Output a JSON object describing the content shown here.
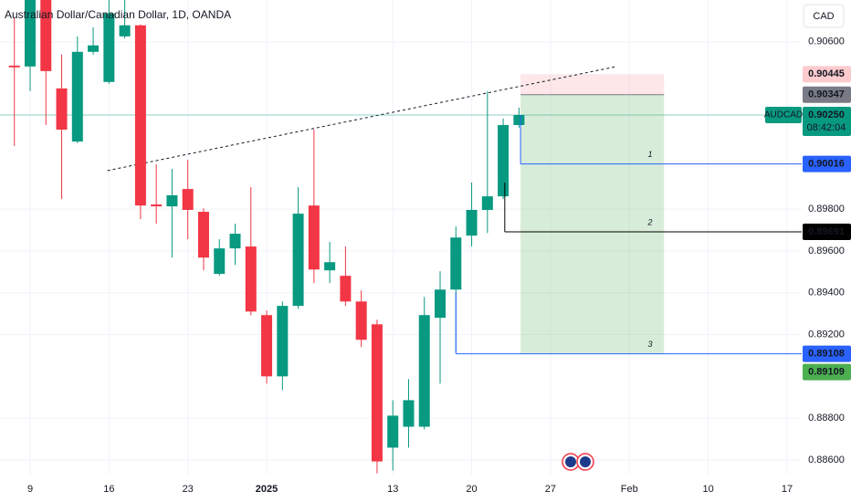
{
  "chart_data": {
    "type": "candlestick",
    "title": "Australian Dollar/Canadian Dollar, 1D, OANDA",
    "currency": "CAD",
    "categories": [
      null,
      "9",
      null,
      null,
      null,
      null,
      "16",
      null,
      null,
      null,
      null,
      "23",
      null,
      null,
      null,
      null,
      "2025",
      null,
      null,
      null,
      null,
      null,
      null,
      null,
      "13",
      null,
      null,
      null,
      null,
      "20",
      null,
      null,
      null,
      null,
      "27",
      null,
      null,
      null,
      null,
      "Feb",
      null,
      null,
      null,
      null,
      "10",
      null,
      null,
      null,
      null,
      "17"
    ],
    "open": [
      0.90486,
      0.90482,
      0.90823,
      0.90377,
      0.90123,
      0.90552,
      0.90408,
      0.90626,
      0.90679,
      0.89822,
      0.89813,
      0.89896,
      0.89787,
      0.8949,
      0.89612,
      0.89621,
      0.89293,
      0.89,
      0.89337,
      0.89817,
      0.89507,
      0.89481,
      0.89358,
      0.89249,
      0.88659,
      0.88759,
      0.88759,
      0.8928,
      0.89415,
      0.89673,
      0.89796,
      0.89861,
      0.90202,
      null,
      null,
      null,
      null,
      null,
      null,
      null,
      null,
      null,
      null,
      null,
      null,
      null,
      null,
      null,
      null,
      null
    ],
    "high": [
      0.90714,
      0.90889,
      0.90889,
      0.90539,
      0.90626,
      0.9067,
      0.90801,
      0.90801,
      0.90683,
      0.90014,
      0.89992,
      0.90036,
      0.89804,
      0.89656,
      0.8973,
      0.89905,
      0.89315,
      0.89358,
      0.89905,
      0.9018,
      0.89643,
      0.89621,
      0.89411,
      0.89271,
      0.88886,
      0.88987,
      0.8938,
      0.89503,
      0.89717,
      0.89927,
      0.90364,
      0.90233,
      0.90285,
      null,
      null,
      null,
      null,
      null,
      null,
      null,
      null,
      null,
      null,
      null,
      null,
      null,
      null,
      null,
      null,
      null
    ],
    "low": [
      0.90102,
      0.90364,
      0.90202,
      0.89848,
      0.90115,
      0.90539,
      0.90399,
      0.90617,
      0.89752,
      0.8973,
      0.89568,
      0.89656,
      0.89507,
      0.89481,
      0.89533,
      0.89293,
      0.88965,
      0.88934,
      0.89323,
      0.89446,
      0.89446,
      0.89337,
      0.8914,
      0.88536,
      0.8855,
      0.88659,
      0.88746,
      0.88965,
      0.89118,
      0.89621,
      0.89686,
      0.89848,
      0.90189,
      null,
      null,
      null,
      null,
      null,
      null,
      null,
      null,
      null,
      null,
      null,
      null,
      null,
      null,
      null,
      null,
      null
    ],
    "close": [
      0.90478,
      0.90823,
      0.9046,
      0.9018,
      0.90552,
      0.90583,
      0.90736,
      0.90679,
      0.89817,
      0.89813,
      0.89866,
      0.89796,
      0.89568,
      0.89612,
      0.89682,
      0.8931,
      0.89,
      0.89337,
      0.89778,
      0.89511,
      0.89546,
      0.89358,
      0.89175,
      0.88593,
      0.88812,
      0.88886,
      0.89293,
      0.89415,
      0.89664,
      0.89796,
      0.89861,
      0.90202,
      0.9025,
      null,
      null,
      null,
      null,
      null,
      null,
      null,
      null,
      null,
      null,
      null,
      null,
      null,
      null,
      null,
      null,
      null
    ],
    "up_color": "#089981",
    "down_color": "#f23645",
    "ylim": [
      0.8853,
      0.908
    ],
    "yticks": [
      {
        "value": 0.906,
        "label": "0.90600"
      },
      {
        "value": 0.898,
        "label": "0.89800"
      },
      {
        "value": 0.896,
        "label": "0.89600"
      },
      {
        "value": 0.894,
        "label": "0.89400"
      },
      {
        "value": 0.892,
        "label": "0.89200"
      },
      {
        "value": 0.888,
        "label": "0.88800"
      },
      {
        "value": 0.886,
        "label": "0.88600"
      }
    ],
    "grid": true,
    "trendline": {
      "x": [
        5.9,
        38.2
      ],
      "y": [
        0.89984,
        0.90482
      ]
    },
    "position": {
      "x": [
        32.1,
        41.2
      ],
      "stop": 0.90445,
      "entry": 0.90347,
      "target": 0.89109,
      "stop_color": "#fccbcd",
      "entry_color": "#787b86",
      "target_color": "#4caf50"
    },
    "last": {
      "symbol": "AUDCAD",
      "price": {
        "value": 0.9025,
        "label": "0.90250"
      },
      "countdown": "08:42:04",
      "color": "#089981"
    },
    "levels": [
      {
        "name": "1",
        "value": 0.90016,
        "color": "#2962ff",
        "anchor_x": 32.1,
        "anchor_y": 0.9025
      },
      {
        "name": "2",
        "value": 0.89691,
        "color": "#000000",
        "anchor_x": 31.1,
        "anchor_y": 0.89927
      },
      {
        "name": "3",
        "value": 0.89108,
        "color": "#2962ff",
        "anchor_x": 28.0,
        "anchor_y": 0.89402
      }
    ]
  }
}
